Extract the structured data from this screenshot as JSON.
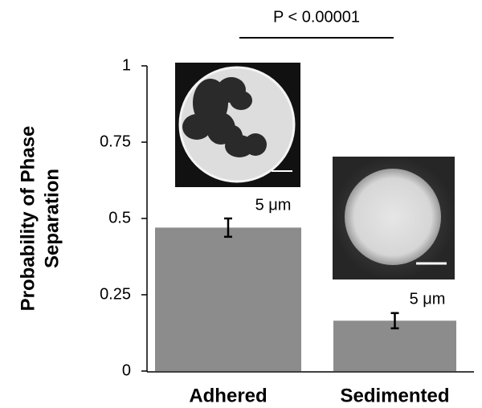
{
  "chart_data": {
    "type": "bar",
    "ylabel": [
      "Probability of Phase",
      "Separation"
    ],
    "categories": [
      "Adhered",
      "Sedimented"
    ],
    "values": [
      0.47,
      0.165
    ],
    "error": [
      0.03,
      0.025
    ],
    "color": "#8c8c8c",
    "ylim": [
      0,
      1
    ],
    "yticks": [
      0,
      0.25,
      0.5,
      0.75,
      1
    ],
    "significance": "P < 0.00001",
    "scale_labels": [
      "5 μm",
      "5 μm"
    ]
  }
}
